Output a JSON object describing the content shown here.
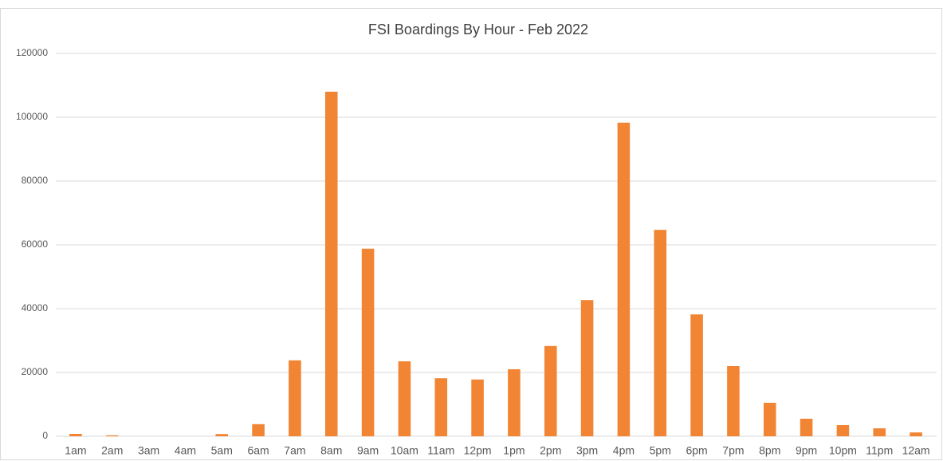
{
  "chart_data": {
    "type": "bar",
    "title": "FSI Boardings By Hour - Feb 2022",
    "categories": [
      "1am",
      "2am",
      "3am",
      "4am",
      "5am",
      "6am",
      "7am",
      "8am",
      "9am",
      "10am",
      "11am",
      "12pm",
      "1pm",
      "2pm",
      "3pm",
      "4pm",
      "5pm",
      "6pm",
      "7pm",
      "8pm",
      "9pm",
      "10pm",
      "11pm",
      "12am"
    ],
    "values": [
      750,
      300,
      0,
      0,
      700,
      3800,
      23800,
      108000,
      58800,
      23500,
      18200,
      17800,
      21000,
      28300,
      42700,
      98300,
      64700,
      38200,
      22000,
      10500,
      5500,
      3500,
      2500,
      1200
    ],
    "color": "#f28533",
    "ylim": [
      0,
      120000
    ],
    "yticks": [
      0,
      20000,
      40000,
      60000,
      80000,
      100000,
      120000
    ],
    "grid": true
  }
}
